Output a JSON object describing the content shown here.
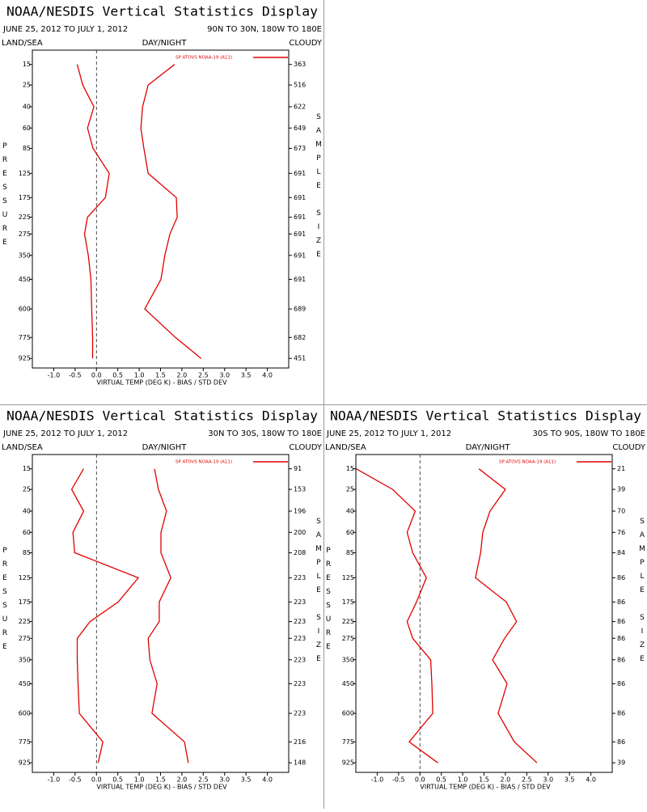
{
  "chart_data": [
    {
      "type": "line",
      "title": "NOAA/NESDIS Vertical Statistics Display",
      "subtitle": "JUNE 25, 2012 TO JULY 1, 2012",
      "region": "90N TO 30N, 180W TO 180E",
      "labels": [
        "LAND/SEA",
        "DAY/NIGHT",
        "CLOUDY"
      ],
      "ylabel": "PRESSURE",
      "y2label": "SAMPLE SIZE",
      "xlabel": "VIRTUAL TEMP (DEG K) - BIAS / STD DEV",
      "categories": [
        15,
        25,
        40,
        60,
        85,
        125,
        175,
        225,
        275,
        350,
        450,
        600,
        775,
        925
      ],
      "sample_sizes": [
        363,
        516,
        622,
        649,
        673,
        691,
        691,
        691,
        691,
        691,
        691,
        689,
        682,
        451
      ],
      "series": [
        {
          "name": "SP ATOVS NOAA-19 (A11)",
          "color": "#e00000",
          "bias": [
            -0.45,
            -0.32,
            -0.06,
            -0.21,
            -0.08,
            0.3,
            0.21,
            -0.21,
            -0.28,
            -0.19,
            -0.13,
            -0.11,
            -0.09,
            -0.09
          ],
          "std_dev": [
            1.83,
            1.21,
            1.08,
            1.04,
            1.11,
            1.21,
            1.87,
            1.89,
            1.72,
            1.6,
            1.51,
            1.13,
            1.85,
            2.45
          ]
        }
      ],
      "xlim": [
        -1.5,
        4.5
      ],
      "xticks": [
        {
          "value": -1,
          "label": "-1.0"
        },
        -0.5,
        {
          "value": 0,
          "label": "0.0"
        },
        0.5,
        {
          "value": 1,
          "label": "1.0"
        },
        1.5,
        {
          "value": 2,
          "label": "2.0"
        },
        2.5,
        {
          "value": 3,
          "label": "3.0"
        },
        3.5,
        {
          "value": 4,
          "label": "4.0"
        }
      ],
      "ylim": [
        10,
        1000
      ],
      "y_inverted": true,
      "zero_line": true
    },
    {
      "type": "line",
      "title": "NOAA/NESDIS Vertical Statistics Display",
      "subtitle": "JUNE 25, 2012 TO JULY 1, 2012",
      "region": "30N TO 30S, 180W TO 180E",
      "labels": [
        "LAND/SEA",
        "DAY/NIGHT",
        "CLOUDY"
      ],
      "ylabel": "PRESSURE",
      "y2label": "SAMPLE SIZE",
      "xlabel": "VIRTUAL TEMP (DEG K) - BIAS / STD DEV",
      "categories": [
        15,
        25,
        40,
        60,
        85,
        125,
        175,
        225,
        275,
        350,
        450,
        600,
        775,
        925
      ],
      "sample_sizes": [
        91,
        153,
        196,
        200,
        208,
        223,
        223,
        223,
        223,
        223,
        223,
        223,
        216,
        148
      ],
      "series": [
        {
          "name": "SP ATOVS NOAA-19 (A11)",
          "color": "#e00000",
          "bias": [
            -0.3,
            -0.58,
            -0.3,
            -0.55,
            -0.51,
            0.98,
            0.51,
            -0.15,
            -0.45,
            -0.45,
            -0.43,
            -0.4,
            0.15,
            0.04
          ],
          "std_dev": [
            1.36,
            1.45,
            1.64,
            1.51,
            1.51,
            1.74,
            1.47,
            1.47,
            1.21,
            1.25,
            1.42,
            1.3,
            2.06,
            2.15
          ]
        }
      ],
      "xlim": [
        -1.5,
        4.5
      ],
      "xticks": [
        {
          "value": -1,
          "label": "-1.0"
        },
        -0.5,
        {
          "value": 0,
          "label": "0.0"
        },
        0.5,
        {
          "value": 1,
          "label": "1.0"
        },
        1.5,
        {
          "value": 2,
          "label": "2.0"
        },
        2.5,
        {
          "value": 3,
          "label": "3.0"
        },
        3.5,
        {
          "value": 4,
          "label": "4.0"
        }
      ],
      "ylim": [
        10,
        1000
      ],
      "y_inverted": true,
      "zero_line": true
    },
    {
      "type": "line",
      "title": "NOAA/NESDIS Vertical Statistics Display",
      "subtitle": "JUNE 25, 2012 TO JULY 1, 2012",
      "region": "30S TO 90S, 180W TO 180E",
      "labels": [
        "LAND/SEA",
        "DAY/NIGHT",
        "CLOUDY"
      ],
      "ylabel": "PRESSURE",
      "y2label": "SAMPLE SIZE",
      "xlabel": "VIRTUAL TEMP (DEG K) - BIAS / STD DEV",
      "categories": [
        15,
        25,
        40,
        60,
        85,
        125,
        175,
        225,
        275,
        350,
        450,
        600,
        775,
        925
      ],
      "sample_sizes": [
        21,
        39,
        70,
        76,
        84,
        86,
        86,
        86,
        86,
        86,
        86,
        86,
        86,
        39
      ],
      "series": [
        {
          "name": "SP ATOVS NOAA-19 (A11)",
          "color": "#e00000",
          "bias": [
            -1.49,
            -0.64,
            -0.11,
            -0.3,
            -0.17,
            0.15,
            -0.08,
            -0.3,
            -0.17,
            0.25,
            0.28,
            0.3,
            -0.25,
            0.42
          ],
          "std_dev": [
            1.38,
            2.0,
            1.64,
            1.47,
            1.42,
            1.3,
            2.02,
            2.26,
            1.98,
            1.7,
            2.04,
            1.83,
            2.21,
            2.74
          ]
        }
      ],
      "xlim": [
        -1.5,
        4.5
      ],
      "xticks": [
        {
          "value": -1,
          "label": "-1.0"
        },
        -0.5,
        {
          "value": 0,
          "label": "0.0"
        },
        0.5,
        {
          "value": 1,
          "label": "1.0"
        },
        1.5,
        {
          "value": 2,
          "label": "2.0"
        },
        2.5,
        {
          "value": 3,
          "label": "3.0"
        },
        3.5,
        {
          "value": 4,
          "label": "4.0"
        }
      ],
      "ylim": [
        10,
        1000
      ],
      "y_inverted": true,
      "zero_line": true
    }
  ]
}
